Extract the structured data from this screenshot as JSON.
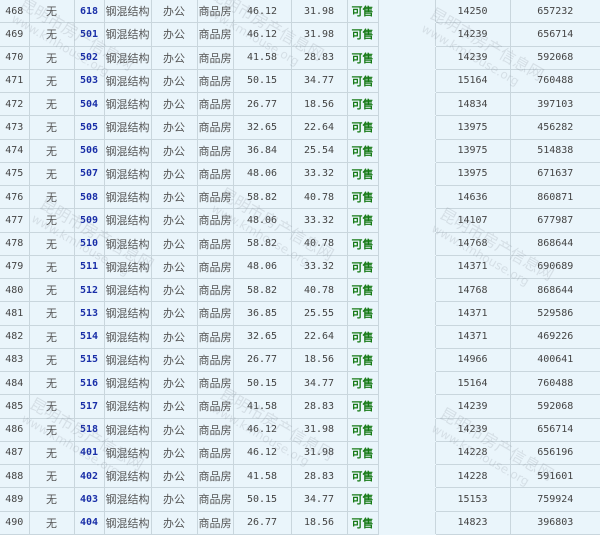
{
  "watermark": {
    "name": "昆明市房产信息网",
    "url": "www.kmhouse.org"
  },
  "colors": {
    "room": "#1a2fa8",
    "status": "#167a16",
    "background": "#eaf5fb"
  },
  "rows": [
    {
      "no": "468",
      "floor": "无",
      "room": "618",
      "structure": "钢混结构",
      "use": "办公",
      "type": "商品房",
      "area": "46.12",
      "inner_area": "31.98",
      "status": "可售",
      "extra": "",
      "unit_price": "14250",
      "total": "657232"
    },
    {
      "no": "469",
      "floor": "无",
      "room": "501",
      "structure": "钢混结构",
      "use": "办公",
      "type": "商品房",
      "area": "46.12",
      "inner_area": "31.98",
      "status": "可售",
      "extra": "",
      "unit_price": "14239",
      "total": "656714"
    },
    {
      "no": "470",
      "floor": "无",
      "room": "502",
      "structure": "钢混结构",
      "use": "办公",
      "type": "商品房",
      "area": "41.58",
      "inner_area": "28.83",
      "status": "可售",
      "extra": "",
      "unit_price": "14239",
      "total": "592068"
    },
    {
      "no": "471",
      "floor": "无",
      "room": "503",
      "structure": "钢混结构",
      "use": "办公",
      "type": "商品房",
      "area": "50.15",
      "inner_area": "34.77",
      "status": "可售",
      "extra": "",
      "unit_price": "15164",
      "total": "760488"
    },
    {
      "no": "472",
      "floor": "无",
      "room": "504",
      "structure": "钢混结构",
      "use": "办公",
      "type": "商品房",
      "area": "26.77",
      "inner_area": "18.56",
      "status": "可售",
      "extra": "",
      "unit_price": "14834",
      "total": "397103"
    },
    {
      "no": "473",
      "floor": "无",
      "room": "505",
      "structure": "钢混结构",
      "use": "办公",
      "type": "商品房",
      "area": "32.65",
      "inner_area": "22.64",
      "status": "可售",
      "extra": "",
      "unit_price": "13975",
      "total": "456282"
    },
    {
      "no": "474",
      "floor": "无",
      "room": "506",
      "structure": "钢混结构",
      "use": "办公",
      "type": "商品房",
      "area": "36.84",
      "inner_area": "25.54",
      "status": "可售",
      "extra": "",
      "unit_price": "13975",
      "total": "514838"
    },
    {
      "no": "475",
      "floor": "无",
      "room": "507",
      "structure": "钢混结构",
      "use": "办公",
      "type": "商品房",
      "area": "48.06",
      "inner_area": "33.32",
      "status": "可售",
      "extra": "",
      "unit_price": "13975",
      "total": "671637"
    },
    {
      "no": "476",
      "floor": "无",
      "room": "508",
      "structure": "钢混结构",
      "use": "办公",
      "type": "商品房",
      "area": "58.82",
      "inner_area": "40.78",
      "status": "可售",
      "extra": "",
      "unit_price": "14636",
      "total": "860871"
    },
    {
      "no": "477",
      "floor": "无",
      "room": "509",
      "structure": "钢混结构",
      "use": "办公",
      "type": "商品房",
      "area": "48.06",
      "inner_area": "33.32",
      "status": "可售",
      "extra": "",
      "unit_price": "14107",
      "total": "677987"
    },
    {
      "no": "478",
      "floor": "无",
      "room": "510",
      "structure": "钢混结构",
      "use": "办公",
      "type": "商品房",
      "area": "58.82",
      "inner_area": "40.78",
      "status": "可售",
      "extra": "",
      "unit_price": "14768",
      "total": "868644"
    },
    {
      "no": "479",
      "floor": "无",
      "room": "511",
      "structure": "钢混结构",
      "use": "办公",
      "type": "商品房",
      "area": "48.06",
      "inner_area": "33.32",
      "status": "可售",
      "extra": "",
      "unit_price": "14371",
      "total": "690689"
    },
    {
      "no": "480",
      "floor": "无",
      "room": "512",
      "structure": "钢混结构",
      "use": "办公",
      "type": "商品房",
      "area": "58.82",
      "inner_area": "40.78",
      "status": "可售",
      "extra": "",
      "unit_price": "14768",
      "total": "868644"
    },
    {
      "no": "481",
      "floor": "无",
      "room": "513",
      "structure": "钢混结构",
      "use": "办公",
      "type": "商品房",
      "area": "36.85",
      "inner_area": "25.55",
      "status": "可售",
      "extra": "",
      "unit_price": "14371",
      "total": "529586"
    },
    {
      "no": "482",
      "floor": "无",
      "room": "514",
      "structure": "钢混结构",
      "use": "办公",
      "type": "商品房",
      "area": "32.65",
      "inner_area": "22.64",
      "status": "可售",
      "extra": "",
      "unit_price": "14371",
      "total": "469226"
    },
    {
      "no": "483",
      "floor": "无",
      "room": "515",
      "structure": "钢混结构",
      "use": "办公",
      "type": "商品房",
      "area": "26.77",
      "inner_area": "18.56",
      "status": "可售",
      "extra": "",
      "unit_price": "14966",
      "total": "400641"
    },
    {
      "no": "484",
      "floor": "无",
      "room": "516",
      "structure": "钢混结构",
      "use": "办公",
      "type": "商品房",
      "area": "50.15",
      "inner_area": "34.77",
      "status": "可售",
      "extra": "",
      "unit_price": "15164",
      "total": "760488"
    },
    {
      "no": "485",
      "floor": "无",
      "room": "517",
      "structure": "钢混结构",
      "use": "办公",
      "type": "商品房",
      "area": "41.58",
      "inner_area": "28.83",
      "status": "可售",
      "extra": "",
      "unit_price": "14239",
      "total": "592068"
    },
    {
      "no": "486",
      "floor": "无",
      "room": "518",
      "structure": "钢混结构",
      "use": "办公",
      "type": "商品房",
      "area": "46.12",
      "inner_area": "31.98",
      "status": "可售",
      "extra": "",
      "unit_price": "14239",
      "total": "656714"
    },
    {
      "no": "487",
      "floor": "无",
      "room": "401",
      "structure": "钢混结构",
      "use": "办公",
      "type": "商品房",
      "area": "46.12",
      "inner_area": "31.98",
      "status": "可售",
      "extra": "",
      "unit_price": "14228",
      "total": "656196"
    },
    {
      "no": "488",
      "floor": "无",
      "room": "402",
      "structure": "钢混结构",
      "use": "办公",
      "type": "商品房",
      "area": "41.58",
      "inner_area": "28.83",
      "status": "可售",
      "extra": "",
      "unit_price": "14228",
      "total": "591601"
    },
    {
      "no": "489",
      "floor": "无",
      "room": "403",
      "structure": "钢混结构",
      "use": "办公",
      "type": "商品房",
      "area": "50.15",
      "inner_area": "34.77",
      "status": "可售",
      "extra": "",
      "unit_price": "15153",
      "total": "759924"
    },
    {
      "no": "490",
      "floor": "无",
      "room": "404",
      "structure": "钢混结构",
      "use": "办公",
      "type": "商品房",
      "area": "26.77",
      "inner_area": "18.56",
      "status": "可售",
      "extra": "",
      "unit_price": "14823",
      "total": "396803"
    }
  ]
}
